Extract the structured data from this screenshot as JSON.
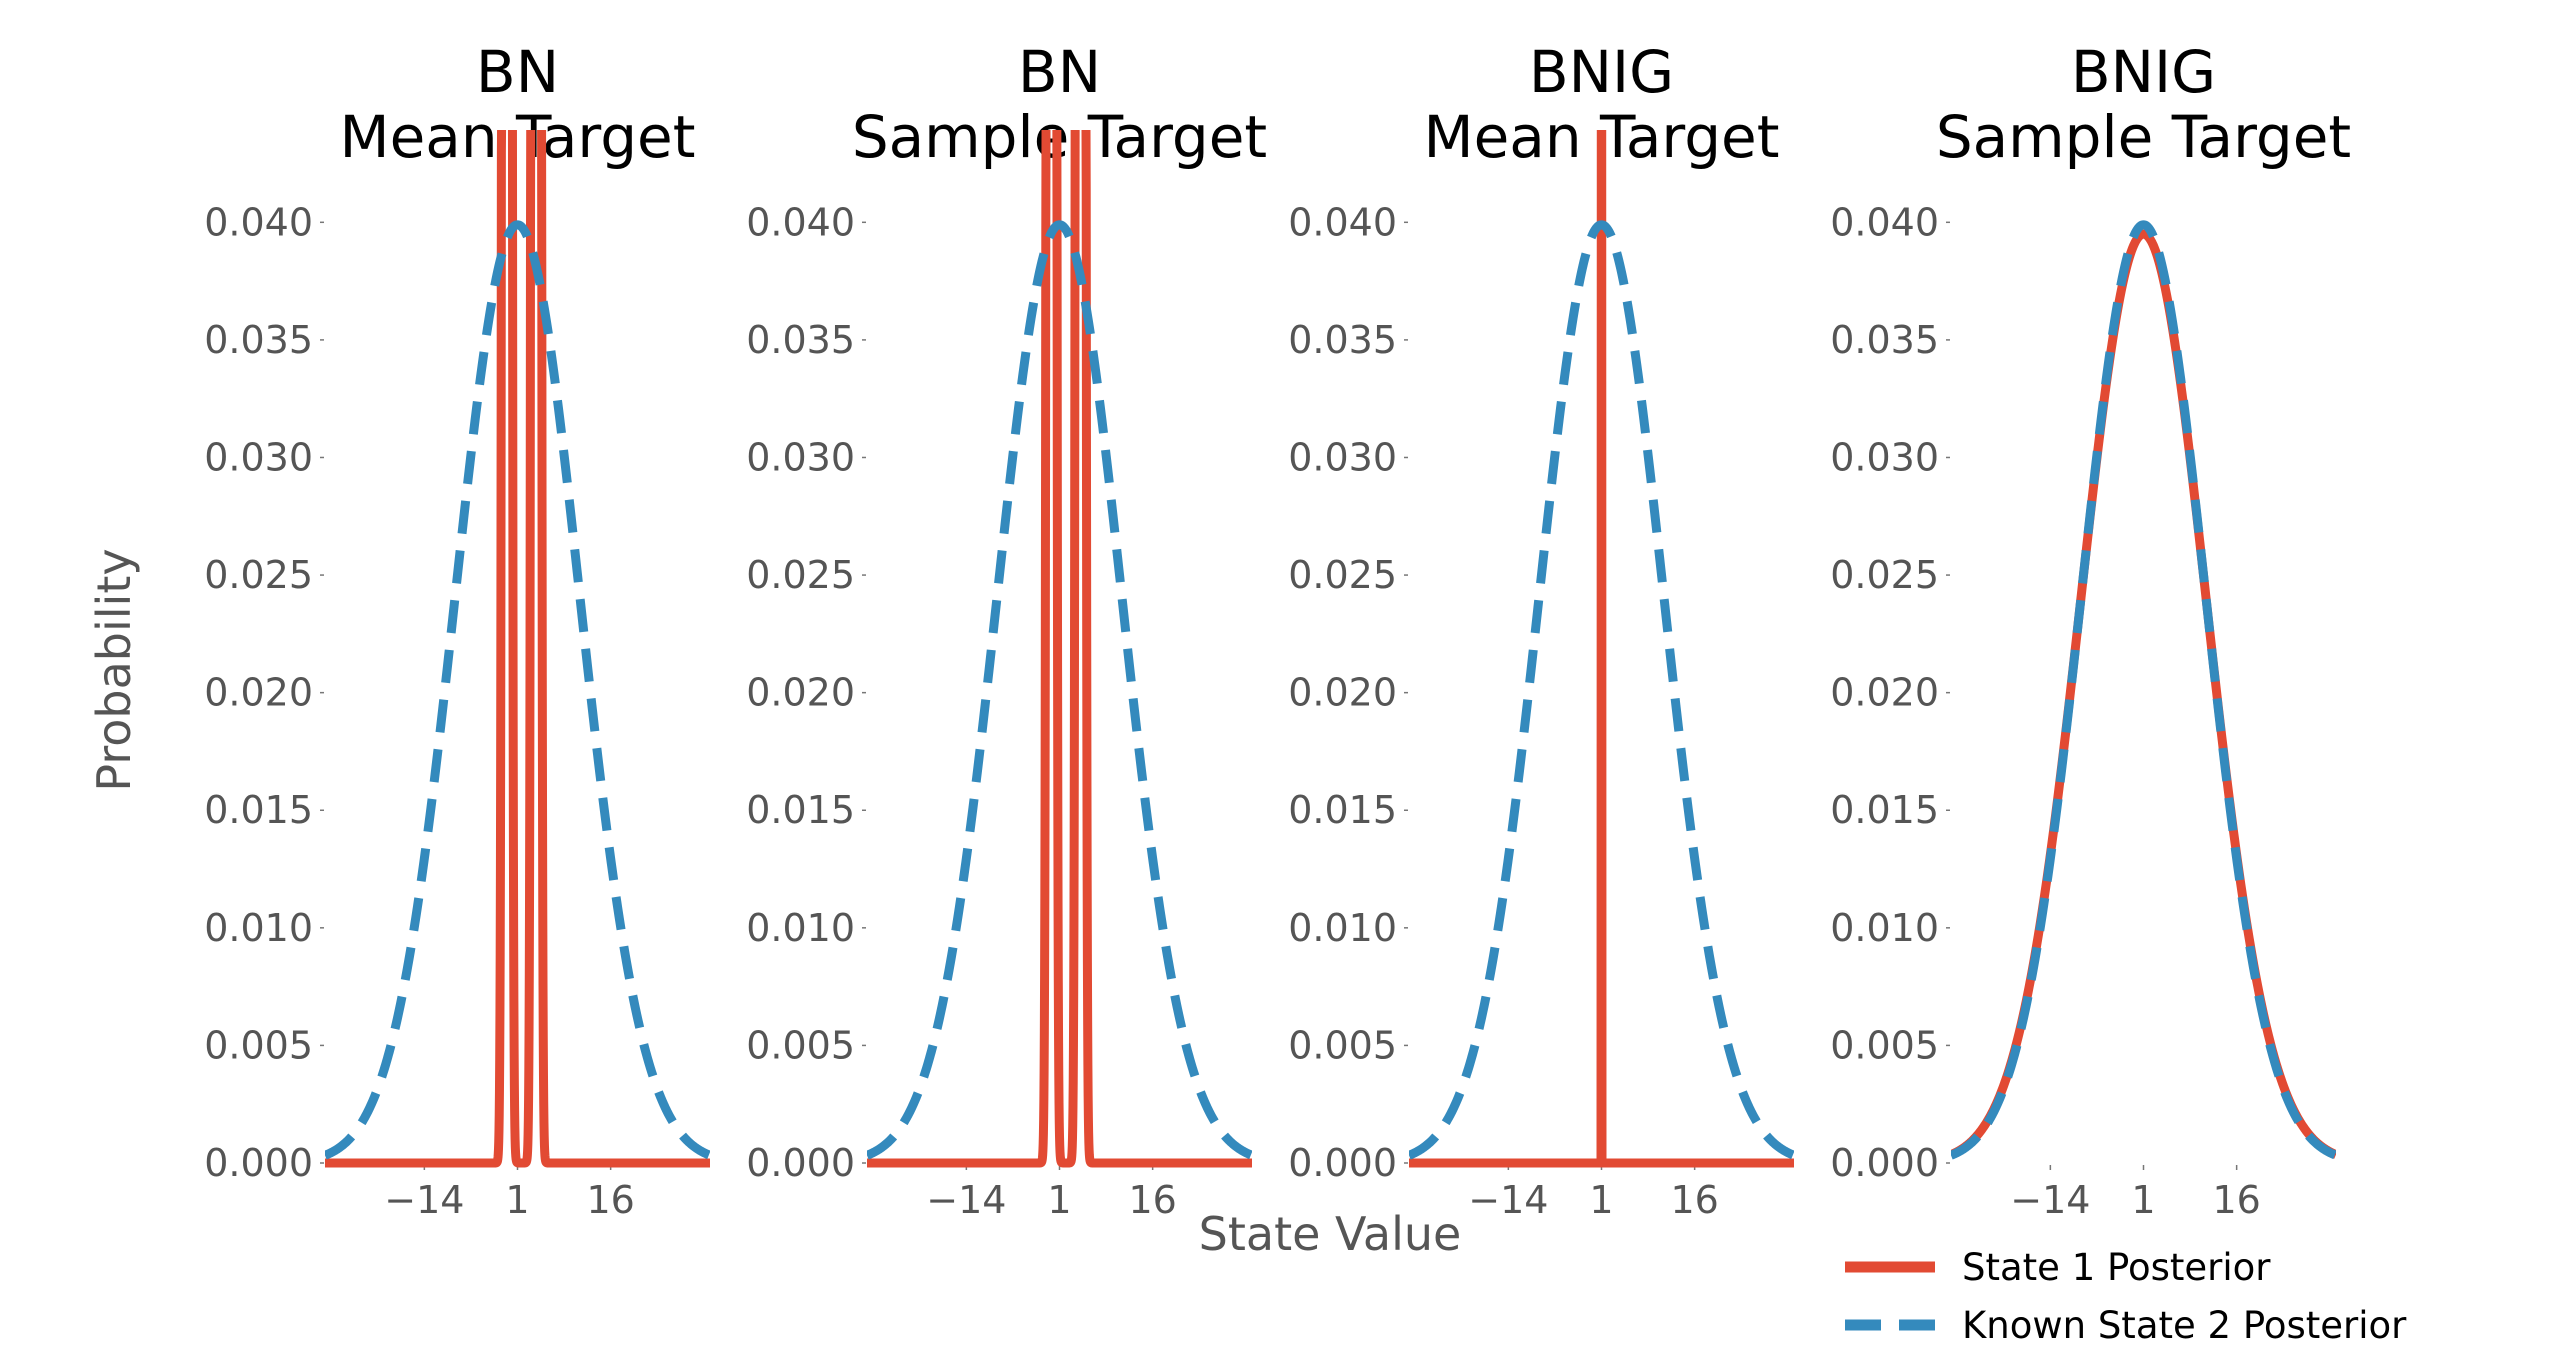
{
  "figure": {
    "xlabel": "State Value",
    "ylabel": "Probability"
  },
  "legend": {
    "placement": "bottom-right",
    "items": [
      {
        "label": "State 1 Posterior",
        "color": "#E24A33",
        "style": "solid"
      },
      {
        "label": "Known State 2 Posterior",
        "color": "#348ABD",
        "style": "dashed"
      }
    ]
  },
  "chart_data": [
    {
      "type": "line",
      "title": "BN\nMean Target",
      "xlim": [
        -30,
        32
      ],
      "ylim": [
        0,
        0.0435
      ],
      "xticks": [
        -14,
        1,
        16
      ],
      "xtick_labels": [
        "−14",
        "1",
        "16"
      ],
      "yticks": [
        0.0,
        0.005,
        0.01,
        0.015,
        0.02,
        0.025,
        0.03,
        0.035,
        0.04
      ],
      "ytick_labels": [
        "0.000",
        "0.005",
        "0.010",
        "0.015",
        "0.020",
        "0.025",
        "0.030",
        "0.035",
        "0.040"
      ],
      "grid": false,
      "series": [
        {
          "name": "State 1 Posterior",
          "kind": "normal",
          "mean": 1,
          "sd": 0.35,
          "bimodal_offsets": [
            -1.7,
            3.0
          ],
          "color": "#E24A33",
          "style": "solid",
          "clipped_top": true
        },
        {
          "name": "Known State 2 Posterior",
          "kind": "normal",
          "mean": 1,
          "sd": 10,
          "color": "#348ABD",
          "style": "dashed"
        }
      ]
    },
    {
      "type": "line",
      "title": "BN\nSample Target",
      "xlim": [
        -30,
        32
      ],
      "ylim": [
        0,
        0.0435
      ],
      "xticks": [
        -14,
        1,
        16
      ],
      "xtick_labels": [
        "−14",
        "1",
        "16"
      ],
      "yticks": [
        0.0,
        0.005,
        0.01,
        0.015,
        0.02,
        0.025,
        0.03,
        0.035,
        0.04
      ],
      "ytick_labels": [
        "0.000",
        "0.005",
        "0.010",
        "0.015",
        "0.020",
        "0.025",
        "0.030",
        "0.035",
        "0.040"
      ],
      "grid": false,
      "series": [
        {
          "name": "State 1 Posterior",
          "kind": "normal",
          "mean": 1,
          "sd": 0.35,
          "bimodal_offsets": [
            -1.3,
            3.4
          ],
          "color": "#E24A33",
          "style": "solid",
          "clipped_top": true
        },
        {
          "name": "Known State 2 Posterior",
          "kind": "normal",
          "mean": 1,
          "sd": 10,
          "color": "#348ABD",
          "style": "dashed"
        }
      ]
    },
    {
      "type": "line",
      "title": "BNIG\nMean Target",
      "xlim": [
        -30,
        32
      ],
      "ylim": [
        0,
        0.0435
      ],
      "xticks": [
        -14,
        1,
        16
      ],
      "xtick_labels": [
        "−14",
        "1",
        "16"
      ],
      "yticks": [
        0.0,
        0.005,
        0.01,
        0.015,
        0.02,
        0.025,
        0.03,
        0.035,
        0.04
      ],
      "ytick_labels": [
        "0.000",
        "0.005",
        "0.010",
        "0.015",
        "0.020",
        "0.025",
        "0.030",
        "0.035",
        "0.040"
      ],
      "grid": false,
      "series": [
        {
          "name": "State 1 Posterior",
          "kind": "spike",
          "mean": 1,
          "color": "#E24A33",
          "style": "solid",
          "clipped_top": true
        },
        {
          "name": "Known State 2 Posterior",
          "kind": "normal",
          "mean": 1,
          "sd": 10,
          "color": "#348ABD",
          "style": "dashed"
        }
      ]
    },
    {
      "type": "line",
      "title": "BNIG\nSample Target",
      "xlim": [
        -30,
        32
      ],
      "ylim": [
        0,
        0.0435
      ],
      "xticks": [
        -14,
        1,
        16
      ],
      "xtick_labels": [
        "−14",
        "1",
        "16"
      ],
      "yticks": [
        0.0,
        0.005,
        0.01,
        0.015,
        0.02,
        0.025,
        0.03,
        0.035,
        0.04
      ],
      "ytick_labels": [
        "0.000",
        "0.005",
        "0.010",
        "0.015",
        "0.020",
        "0.025",
        "0.030",
        "0.035",
        "0.040"
      ],
      "grid": false,
      "series": [
        {
          "name": "State 1 Posterior",
          "kind": "normal",
          "mean": 1,
          "sd": 10.1,
          "color": "#E24A33",
          "style": "solid"
        },
        {
          "name": "Known State 2 Posterior",
          "kind": "normal",
          "mean": 1,
          "sd": 10,
          "color": "#348ABD",
          "style": "dashed"
        }
      ]
    }
  ]
}
